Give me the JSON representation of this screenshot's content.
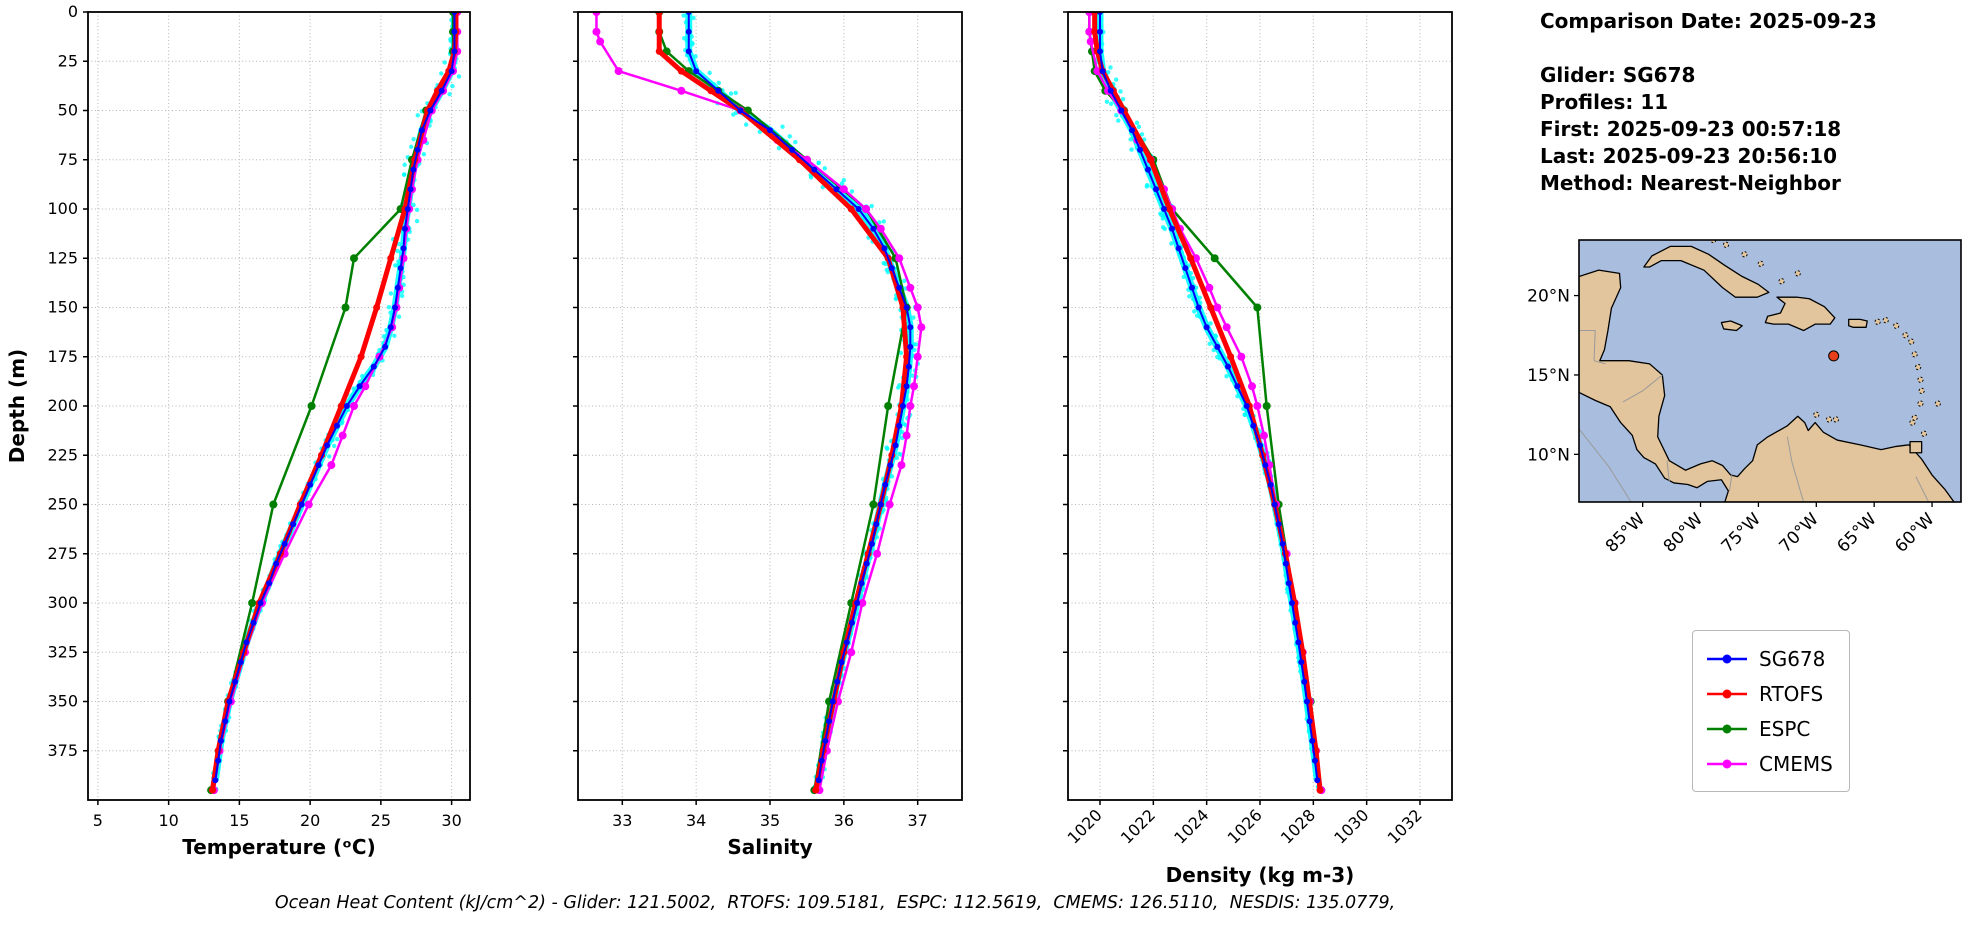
{
  "info": {
    "comparison": "Comparison Date: 2025-09-23",
    "glider": "Glider: SG678",
    "profiles": "Profiles: 11",
    "first": "First: 2025-09-23 00:57:18",
    "last": "Last: 2025-09-23 20:56:10",
    "method": "Method: Nearest-Neighbor"
  },
  "caption": "Ocean Heat Content (kJ/cm^2) - Glider: 121.5002,  RTOFS: 109.5181,  ESPC: 112.5619,  CMEMS: 126.5110,  NESDIS: 135.0779,",
  "legend": {
    "items": [
      {
        "label": "SG678",
        "color": "#0000ff"
      },
      {
        "label": "RTOFS",
        "color": "#ff0000"
      },
      {
        "label": "ESPC",
        "color": "#008000"
      },
      {
        "label": "CMEMS",
        "color": "#ff00ff"
      }
    ]
  },
  "depth_axis": {
    "label": "Depth (m)",
    "lim": [
      0,
      400
    ],
    "ticks": [
      0,
      25,
      50,
      75,
      100,
      125,
      150,
      175,
      200,
      225,
      250,
      275,
      300,
      325,
      350,
      375
    ]
  },
  "chart_data": [
    {
      "type": "line",
      "name": "temperature",
      "xlabel": "Temperature (ᵒC)",
      "xlim": [
        4.3,
        31.3
      ],
      "xticks": [
        5,
        10,
        15,
        20,
        25,
        30
      ],
      "rotate_xticklabels": false,
      "glider_band": {
        "color": "#00ffff",
        "spread": 0.5
      },
      "series": [
        {
          "name": "SG678",
          "color": "#0000ff",
          "lw": 2,
          "ms": 3,
          "z": 4,
          "depths": [
            0,
            10,
            20,
            30,
            40,
            50,
            60,
            70,
            80,
            90,
            100,
            110,
            120,
            130,
            140,
            150,
            160,
            170,
            180,
            190,
            200,
            210,
            220,
            230,
            240,
            250,
            260,
            270,
            280,
            290,
            300,
            310,
            320,
            330,
            340,
            350,
            360,
            370,
            380,
            390
          ],
          "values": [
            30.2,
            30.2,
            30.2,
            30.0,
            29.3,
            28.5,
            27.9,
            27.6,
            27.3,
            27.1,
            26.9,
            26.7,
            26.6,
            26.4,
            26.2,
            26.0,
            25.7,
            25.3,
            24.5,
            23.5,
            22.6,
            21.9,
            21.2,
            20.6,
            20.0,
            19.4,
            18.8,
            18.2,
            17.6,
            17.1,
            16.5,
            16.0,
            15.5,
            15.1,
            14.7,
            14.3,
            14.0,
            13.7,
            13.5,
            13.3
          ]
        },
        {
          "name": "RTOFS",
          "color": "#ff0000",
          "lw": 5,
          "ms": 3.5,
          "z": 3,
          "depths": [
            0,
            10,
            20,
            30,
            40,
            50,
            75,
            100,
            125,
            150,
            175,
            200,
            225,
            250,
            275,
            300,
            325,
            350,
            375,
            395
          ],
          "values": [
            30.3,
            30.3,
            30.2,
            29.8,
            29.0,
            28.3,
            27.4,
            26.7,
            25.7,
            24.7,
            23.6,
            22.2,
            20.8,
            19.3,
            17.9,
            16.4,
            15.3,
            14.2,
            13.5,
            13.1
          ]
        },
        {
          "name": "ESPC",
          "color": "#008000",
          "lw": 2.5,
          "ms": 4,
          "z": 1,
          "depths": [
            0,
            10,
            20,
            30,
            40,
            50,
            75,
            100,
            125,
            150,
            200,
            250,
            300,
            350,
            395
          ],
          "values": [
            30.1,
            30.1,
            30.1,
            30.0,
            29.3,
            28.2,
            27.2,
            26.4,
            23.1,
            22.5,
            20.1,
            17.4,
            15.9,
            14.2,
            13.0
          ]
        },
        {
          "name": "CMEMS",
          "color": "#ff00ff",
          "lw": 2.5,
          "ms": 4,
          "z": 2,
          "depths": [
            0,
            10,
            20,
            30,
            40,
            50,
            65,
            75,
            90,
            100,
            110,
            125,
            140,
            150,
            160,
            175,
            190,
            200,
            215,
            230,
            250,
            275,
            300,
            325,
            350,
            375,
            395
          ],
          "values": [
            30.4,
            30.4,
            30.4,
            30.1,
            29.4,
            28.6,
            28.0,
            27.6,
            27.2,
            27.0,
            26.8,
            26.6,
            26.3,
            26.1,
            25.8,
            24.9,
            23.9,
            23.1,
            22.3,
            21.5,
            19.9,
            18.2,
            16.6,
            15.4,
            14.4,
            13.6,
            13.2
          ]
        }
      ]
    },
    {
      "type": "line",
      "name": "salinity",
      "xlabel": "Salinity",
      "xlim": [
        32.4,
        37.6
      ],
      "xticks": [
        33,
        34,
        35,
        36,
        37
      ],
      "rotate_xticklabels": false,
      "glider_band": {
        "color": "#00ffff",
        "spread": 0.13
      },
      "series": [
        {
          "name": "SG678",
          "color": "#0000ff",
          "lw": 2,
          "ms": 3,
          "z": 4,
          "depths": [
            0,
            10,
            20,
            30,
            40,
            50,
            60,
            70,
            80,
            90,
            100,
            110,
            120,
            130,
            140,
            150,
            160,
            170,
            180,
            190,
            200,
            210,
            220,
            230,
            240,
            250,
            260,
            270,
            280,
            290,
            300,
            310,
            320,
            330,
            340,
            350,
            360,
            370,
            380,
            390
          ],
          "values": [
            33.9,
            33.9,
            33.9,
            34.0,
            34.3,
            34.6,
            35.0,
            35.3,
            35.6,
            35.9,
            36.2,
            36.4,
            36.55,
            36.65,
            36.75,
            36.85,
            36.9,
            36.9,
            36.88,
            36.85,
            36.8,
            36.75,
            36.7,
            36.63,
            36.56,
            36.5,
            36.44,
            36.38,
            36.31,
            36.24,
            36.18,
            36.11,
            36.04,
            35.97,
            35.91,
            35.85,
            35.8,
            35.75,
            35.7,
            35.66
          ]
        },
        {
          "name": "RTOFS",
          "color": "#ff0000",
          "lw": 5,
          "ms": 3.5,
          "z": 3,
          "depths": [
            0,
            10,
            20,
            30,
            40,
            50,
            75,
            100,
            125,
            150,
            175,
            200,
            225,
            250,
            275,
            300,
            325,
            350,
            375,
            395
          ],
          "values": [
            33.5,
            33.5,
            33.5,
            33.8,
            34.2,
            34.6,
            35.4,
            36.1,
            36.6,
            36.8,
            36.85,
            36.78,
            36.65,
            36.5,
            36.33,
            36.16,
            36.0,
            35.86,
            35.72,
            35.62
          ]
        },
        {
          "name": "ESPC",
          "color": "#008000",
          "lw": 2.5,
          "ms": 4,
          "z": 1,
          "depths": [
            0,
            10,
            20,
            30,
            40,
            50,
            75,
            100,
            125,
            150,
            200,
            250,
            300,
            350,
            395
          ],
          "values": [
            33.5,
            33.5,
            33.6,
            33.9,
            34.3,
            34.7,
            35.5,
            36.3,
            36.7,
            36.85,
            36.6,
            36.4,
            36.1,
            35.8,
            35.6
          ]
        },
        {
          "name": "CMEMS",
          "color": "#ff00ff",
          "lw": 2.5,
          "ms": 4,
          "z": 2,
          "depths": [
            0,
            10,
            15,
            30,
            40,
            50,
            65,
            75,
            90,
            100,
            110,
            125,
            140,
            150,
            160,
            175,
            190,
            200,
            215,
            230,
            250,
            275,
            300,
            325,
            350,
            375,
            395
          ],
          "values": [
            32.65,
            32.65,
            32.7,
            32.95,
            33.8,
            34.6,
            35.1,
            35.5,
            36.0,
            36.3,
            36.5,
            36.75,
            36.9,
            37.0,
            37.05,
            37.0,
            36.95,
            36.9,
            36.85,
            36.78,
            36.62,
            36.45,
            36.25,
            36.1,
            35.92,
            35.77,
            35.67
          ]
        }
      ]
    },
    {
      "type": "line",
      "name": "density",
      "xlabel": "Density (kg m-3)",
      "xlim": [
        1018.8,
        1033.2
      ],
      "xticks": [
        1020,
        1022,
        1024,
        1026,
        1028,
        1030,
        1032
      ],
      "rotate_xticklabels": true,
      "glider_band": {
        "color": "#00ffff",
        "spread": 0.22
      },
      "series": [
        {
          "name": "SG678",
          "color": "#0000ff",
          "lw": 2,
          "ms": 3,
          "z": 4,
          "depths": [
            0,
            10,
            20,
            30,
            40,
            50,
            60,
            70,
            80,
            90,
            100,
            110,
            120,
            130,
            140,
            150,
            160,
            170,
            180,
            190,
            200,
            210,
            220,
            230,
            240,
            250,
            260,
            270,
            280,
            290,
            300,
            310,
            320,
            330,
            340,
            350,
            360,
            370,
            380,
            390
          ],
          "values": [
            1020.0,
            1020.0,
            1020.0,
            1020.1,
            1020.4,
            1020.8,
            1021.2,
            1021.5,
            1021.8,
            1022.1,
            1022.4,
            1022.7,
            1022.95,
            1023.2,
            1023.45,
            1023.7,
            1024.0,
            1024.4,
            1024.8,
            1025.15,
            1025.5,
            1025.75,
            1026.0,
            1026.2,
            1026.4,
            1026.55,
            1026.7,
            1026.85,
            1026.97,
            1027.08,
            1027.2,
            1027.32,
            1027.44,
            1027.55,
            1027.66,
            1027.76,
            1027.86,
            1027.96,
            1028.06,
            1028.15
          ]
        },
        {
          "name": "RTOFS",
          "color": "#ff0000",
          "lw": 5,
          "ms": 3.5,
          "z": 3,
          "depths": [
            0,
            10,
            20,
            30,
            40,
            50,
            75,
            100,
            125,
            150,
            175,
            200,
            225,
            250,
            275,
            300,
            325,
            350,
            375,
            395
          ],
          "values": [
            1019.8,
            1019.8,
            1019.9,
            1020.1,
            1020.5,
            1020.9,
            1021.9,
            1022.6,
            1023.4,
            1024.15,
            1024.9,
            1025.6,
            1026.1,
            1026.55,
            1026.95,
            1027.3,
            1027.6,
            1027.85,
            1028.1,
            1028.25
          ]
        },
        {
          "name": "ESPC",
          "color": "#008000",
          "lw": 2.5,
          "ms": 4,
          "z": 1,
          "depths": [
            0,
            10,
            20,
            30,
            40,
            50,
            75,
            100,
            125,
            150,
            200,
            250,
            300,
            350,
            395
          ],
          "values": [
            1019.6,
            1019.6,
            1019.7,
            1019.8,
            1020.2,
            1020.9,
            1022.0,
            1022.7,
            1024.3,
            1025.9,
            1026.25,
            1026.7,
            1027.3,
            1027.9,
            1028.3
          ]
        },
        {
          "name": "CMEMS",
          "color": "#ff00ff",
          "lw": 2.5,
          "ms": 4,
          "z": 2,
          "depths": [
            0,
            10,
            15,
            30,
            40,
            50,
            65,
            75,
            90,
            100,
            110,
            125,
            140,
            150,
            160,
            175,
            190,
            200,
            215,
            230,
            250,
            275,
            300,
            325,
            350,
            375,
            395
          ],
          "values": [
            1019.6,
            1019.6,
            1019.65,
            1019.9,
            1020.3,
            1020.8,
            1021.4,
            1021.9,
            1022.4,
            1022.7,
            1023.0,
            1023.6,
            1024.1,
            1024.4,
            1024.75,
            1025.3,
            1025.7,
            1025.9,
            1026.15,
            1026.35,
            1026.6,
            1027.0,
            1027.3,
            1027.6,
            1027.87,
            1028.1,
            1028.3
          ]
        }
      ]
    }
  ],
  "map": {
    "ocean_color": "#a9bede",
    "land_color": "#e2c59c",
    "lat_ticks": [
      {
        "v": 20,
        "label": "20°N"
      },
      {
        "v": 15,
        "label": "15°N"
      },
      {
        "v": 10,
        "label": "10°N"
      }
    ],
    "lon_ticks": [
      {
        "v": -85,
        "label": "85°W"
      },
      {
        "v": -80,
        "label": "80°W"
      },
      {
        "v": -75,
        "label": "75°W"
      },
      {
        "v": -70,
        "label": "70°W"
      },
      {
        "v": -65,
        "label": "65°W"
      },
      {
        "v": -60,
        "label": "60°W"
      }
    ],
    "marker": {
      "lon": -68.5,
      "lat": 16.2,
      "color": "#e8401c"
    }
  }
}
